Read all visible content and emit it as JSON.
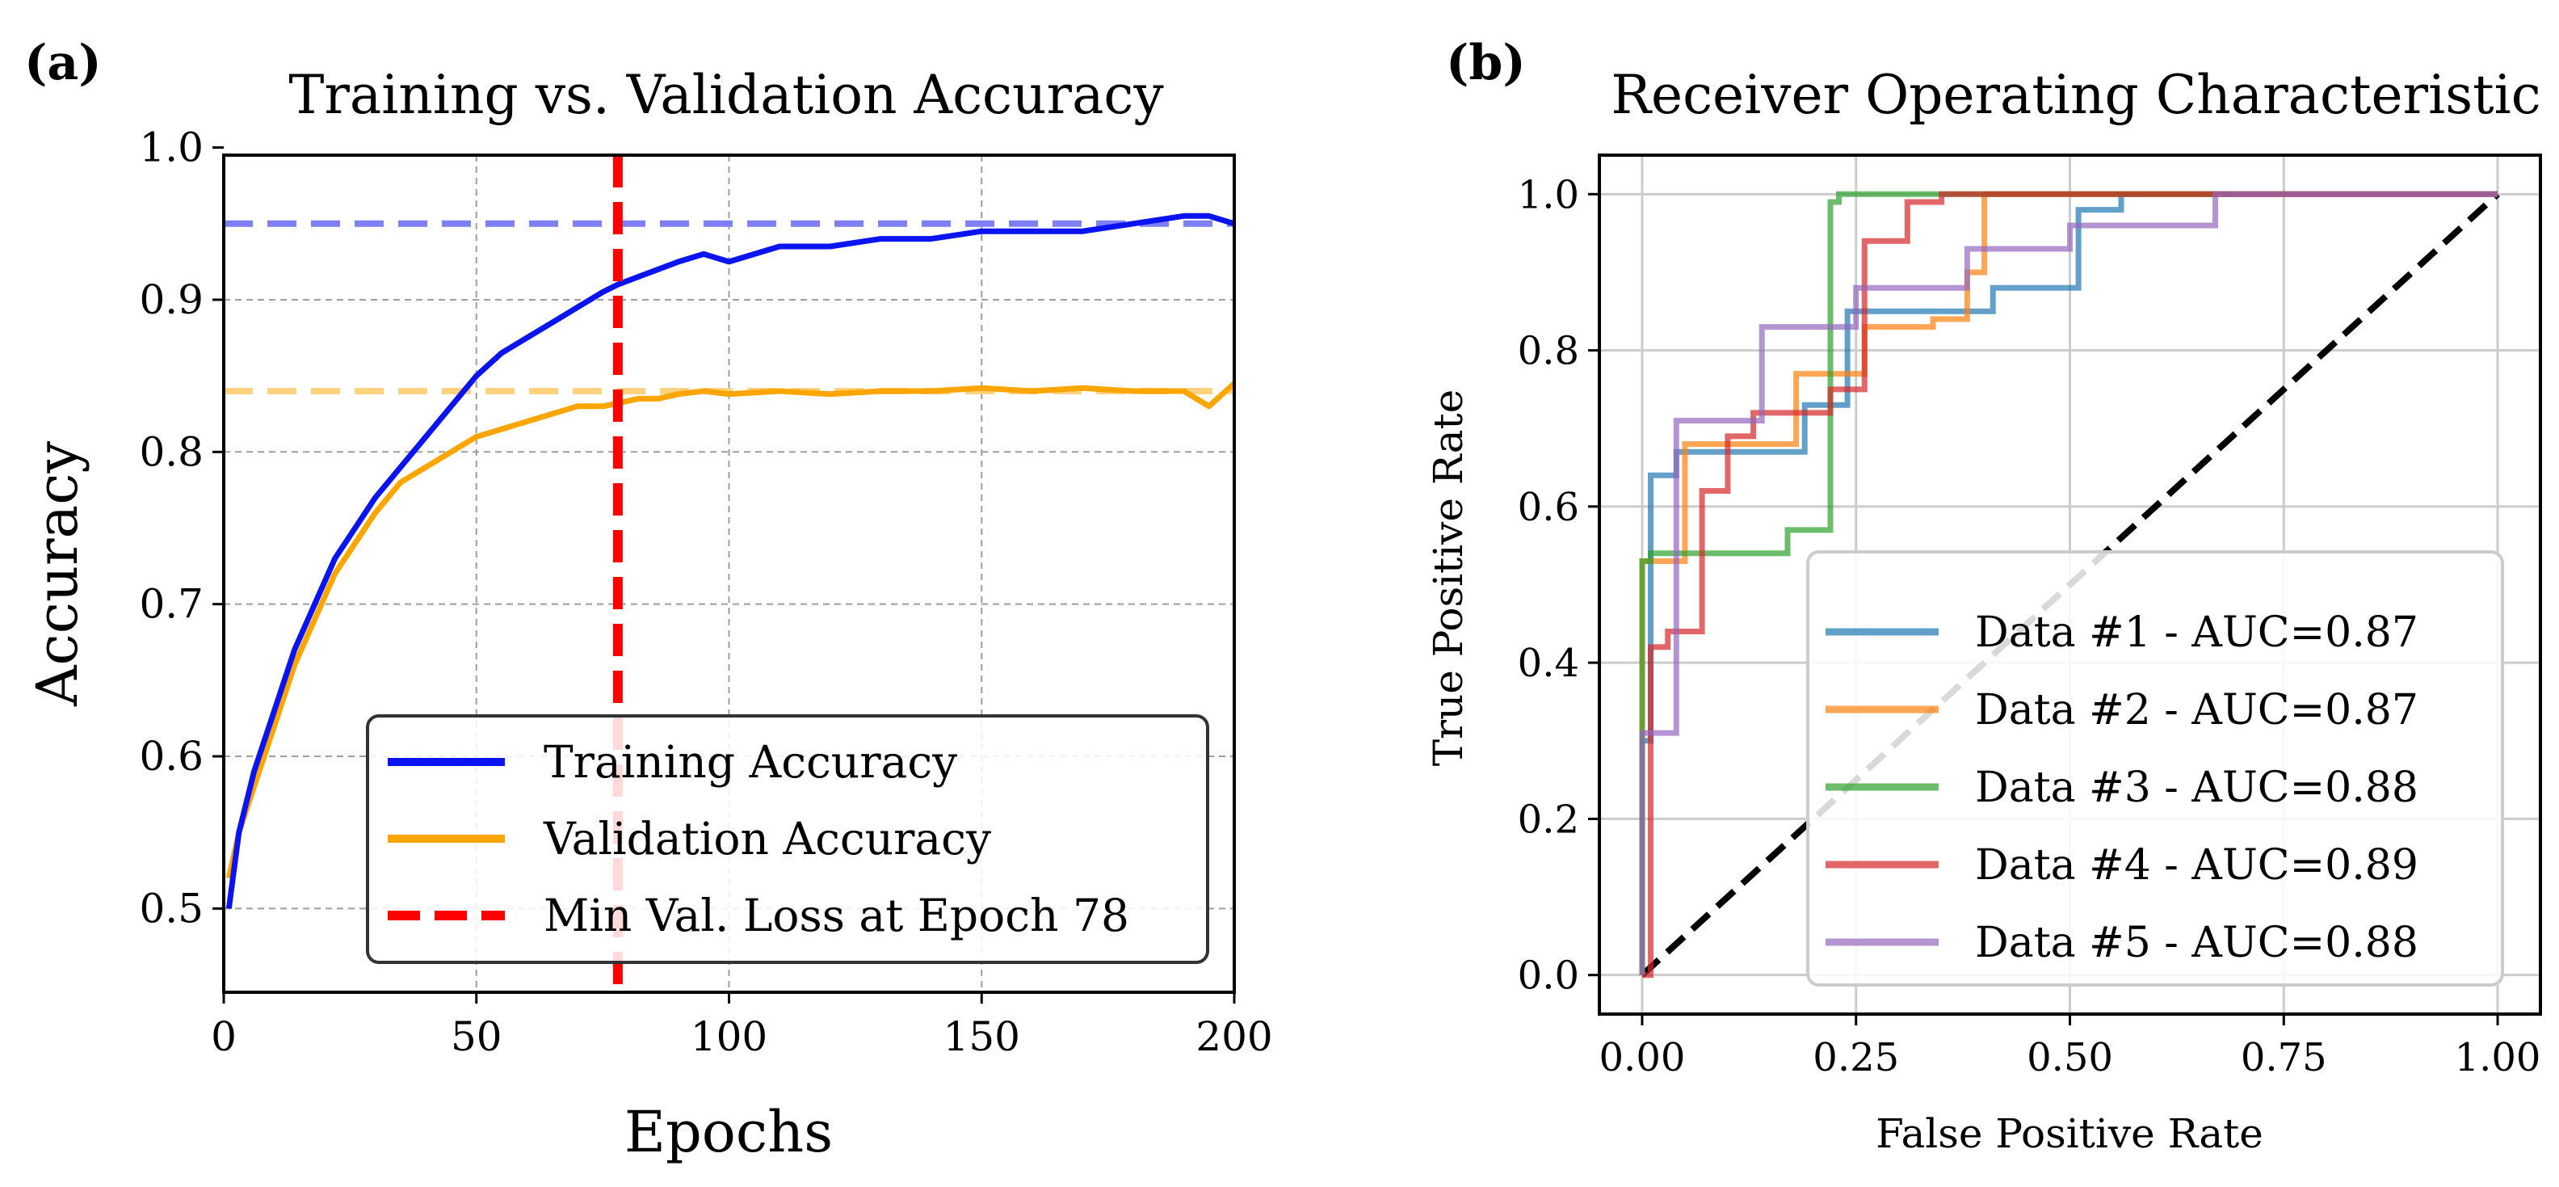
{
  "chart_data": [
    {
      "panel_label": "(a)",
      "type": "line",
      "title": "Training vs. Validation Accuracy",
      "xlabel": "Epochs",
      "ylabel": "Accuracy",
      "xlim": [
        0,
        200
      ],
      "ylim": [
        0.445,
        0.995
      ],
      "xticks": [
        0,
        50,
        100,
        150,
        200
      ],
      "xtick_labels": [
        "0",
        "50",
        "100",
        "150",
        "200"
      ],
      "yticks": [
        0.5,
        0.6,
        0.7,
        0.8,
        0.9,
        1.0
      ],
      "ytick_labels": [
        "0.5",
        "0.6",
        "0.7",
        "0.8",
        "0.9",
        "1.0"
      ],
      "grid": true,
      "colors": {
        "training": "#0a14f0",
        "validation": "#ffa500",
        "min_loss": "#ff0000",
        "training_ref": "#7f7ff5",
        "validation_ref": "#ffd27f",
        "grid": "#9e9e9e"
      },
      "reference_lines": [
        {
          "name": "training-max-reference",
          "y": 0.95
        },
        {
          "name": "validation-max-reference",
          "y": 0.84
        }
      ],
      "vline": {
        "x": 78,
        "label": "Min Val. Loss at Epoch 78"
      },
      "series": [
        {
          "name": "Training Accuracy",
          "x": [
            1,
            3,
            6,
            10,
            14,
            18,
            22,
            26,
            30,
            35,
            40,
            45,
            50,
            55,
            60,
            65,
            70,
            75,
            78,
            82,
            86,
            90,
            95,
            100,
            110,
            120,
            130,
            140,
            150,
            160,
            170,
            180,
            190,
            195,
            200
          ],
          "values": [
            0.5,
            0.55,
            0.59,
            0.63,
            0.67,
            0.7,
            0.73,
            0.75,
            0.77,
            0.79,
            0.81,
            0.83,
            0.85,
            0.865,
            0.875,
            0.885,
            0.895,
            0.905,
            0.91,
            0.915,
            0.92,
            0.925,
            0.93,
            0.925,
            0.935,
            0.935,
            0.94,
            0.94,
            0.945,
            0.945,
            0.945,
            0.95,
            0.955,
            0.955,
            0.95
          ]
        },
        {
          "name": "Validation Accuracy",
          "x": [
            1,
            3,
            6,
            10,
            14,
            18,
            22,
            26,
            30,
            35,
            40,
            45,
            50,
            55,
            60,
            65,
            70,
            75,
            78,
            82,
            86,
            90,
            95,
            100,
            110,
            120,
            130,
            140,
            150,
            160,
            170,
            180,
            190,
            195,
            200
          ],
          "values": [
            0.52,
            0.55,
            0.58,
            0.62,
            0.66,
            0.69,
            0.72,
            0.74,
            0.76,
            0.78,
            0.79,
            0.8,
            0.81,
            0.815,
            0.82,
            0.825,
            0.83,
            0.83,
            0.832,
            0.835,
            0.835,
            0.838,
            0.84,
            0.838,
            0.84,
            0.838,
            0.84,
            0.84,
            0.842,
            0.84,
            0.842,
            0.84,
            0.84,
            0.83,
            0.845
          ]
        }
      ],
      "legend": {
        "placement": "lower-right",
        "entries": [
          "Training Accuracy",
          "Validation Accuracy",
          "Min Val. Loss at Epoch 78"
        ]
      }
    },
    {
      "panel_label": "(b)",
      "type": "line",
      "title": "Receiver Operating Characteristic",
      "xlabel": "False Positive Rate",
      "ylabel": "True Positive Rate",
      "xlim": [
        -0.05,
        1.05
      ],
      "ylim": [
        -0.05,
        1.05
      ],
      "xticks": [
        0,
        0.25,
        0.5,
        0.75,
        1.0
      ],
      "xtick_labels": [
        "0.00",
        "0.25",
        "0.50",
        "0.75",
        "1.00"
      ],
      "yticks": [
        0,
        0.2,
        0.4,
        0.6,
        0.8,
        1.0
      ],
      "ytick_labels": [
        "0.0",
        "0.2",
        "0.4",
        "0.6",
        "0.8",
        "1.0"
      ],
      "grid": true,
      "colors": {
        "grid": "#cccccc",
        "diagonal": "#000000"
      },
      "diagonal": {
        "x": [
          0,
          1
        ],
        "y": [
          0,
          1
        ]
      },
      "series": [
        {
          "name": "Data #1 - AUC=0.87",
          "color": "#1f77b4",
          "x": [
            0,
            0,
            0.01,
            0.01,
            0.04,
            0.04,
            0.19,
            0.19,
            0.24,
            0.24,
            0.41,
            0.41,
            0.51,
            0.51,
            0.56,
            0.56,
            1.0
          ],
          "y": [
            0,
            0.3,
            0.3,
            0.64,
            0.64,
            0.67,
            0.67,
            0.73,
            0.73,
            0.85,
            0.85,
            0.88,
            0.88,
            0.98,
            0.98,
            1.0,
            1.0
          ]
        },
        {
          "name": "Data #2 - AUC=0.87",
          "color": "#ff7f0e",
          "x": [
            0,
            0,
            0.05,
            0.05,
            0.18,
            0.18,
            0.26,
            0.26,
            0.34,
            0.34,
            0.38,
            0.38,
            0.4,
            0.4,
            1.0
          ],
          "y": [
            0,
            0.53,
            0.53,
            0.68,
            0.68,
            0.77,
            0.77,
            0.83,
            0.83,
            0.84,
            0.84,
            0.9,
            0.9,
            1.0,
            1.0
          ]
        },
        {
          "name": "Data #3 - AUC=0.88",
          "color": "#2ca02c",
          "x": [
            0,
            0,
            0.01,
            0.01,
            0.17,
            0.17,
            0.22,
            0.22,
            0.23,
            0.23,
            0.3,
            0.3,
            1.0
          ],
          "y": [
            0,
            0.53,
            0.53,
            0.54,
            0.54,
            0.57,
            0.57,
            0.99,
            0.99,
            1.0,
            1.0,
            1.0,
            1.0
          ]
        },
        {
          "name": "Data #4 - AUC=0.89",
          "color": "#d62728",
          "x": [
            0,
            0.01,
            0.01,
            0.03,
            0.03,
            0.07,
            0.07,
            0.1,
            0.1,
            0.13,
            0.13,
            0.22,
            0.22,
            0.26,
            0.26,
            0.31,
            0.31,
            0.35,
            0.35,
            1.0
          ],
          "y": [
            0,
            0,
            0.42,
            0.42,
            0.44,
            0.44,
            0.62,
            0.62,
            0.69,
            0.69,
            0.72,
            0.72,
            0.75,
            0.75,
            0.94,
            0.94,
            0.99,
            0.99,
            1.0,
            1.0
          ]
        },
        {
          "name": "Data #5 - AUC=0.88",
          "color": "#9467bd",
          "x": [
            0,
            0,
            0.02,
            0.02,
            0.04,
            0.04,
            0.06,
            0.06,
            0.14,
            0.14,
            0.22,
            0.22,
            0.25,
            0.25,
            0.3,
            0.3,
            0.38,
            0.38,
            0.5,
            0.5,
            0.67,
            0.67,
            1.0
          ],
          "y": [
            0,
            0.31,
            0.31,
            0.31,
            0.31,
            0.71,
            0.71,
            0.71,
            0.71,
            0.83,
            0.83,
            0.83,
            0.83,
            0.88,
            0.88,
            0.88,
            0.88,
            0.93,
            0.93,
            0.96,
            0.96,
            1.0,
            1.0
          ]
        }
      ],
      "legend": {
        "placement": "lower-right",
        "entries": [
          "Data #1 - AUC=0.87",
          "Data #2 - AUC=0.87",
          "Data #3 - AUC=0.88",
          "Data #4 - AUC=0.89",
          "Data #5 - AUC=0.88"
        ]
      }
    }
  ]
}
